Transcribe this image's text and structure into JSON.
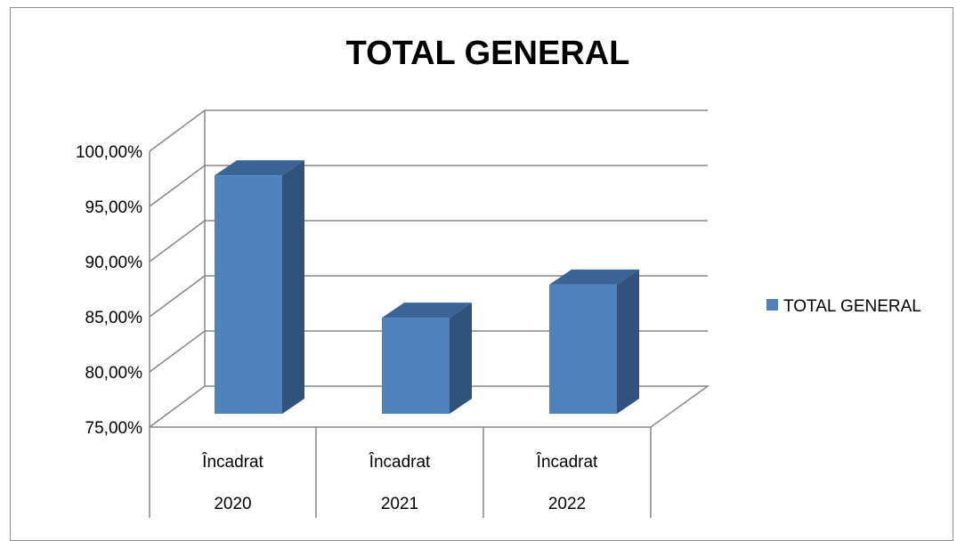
{
  "chart_data": {
    "type": "bar",
    "title": "TOTAL GENERAL",
    "categories": [
      {
        "label": "Încadrat",
        "group": "2020"
      },
      {
        "label": "Încadrat",
        "group": "2021"
      },
      {
        "label": "Încadrat",
        "group": "2022"
      }
    ],
    "series": [
      {
        "name": "TOTAL GENERAL",
        "values": [
          96.6,
          83.7,
          86.7
        ],
        "color": "#4f81bd"
      }
    ],
    "ylim": [
      75,
      100
    ],
    "ytick_step": 5,
    "ytick_labels": [
      "75,00%",
      "80,00%",
      "85,00%",
      "90,00%",
      "95,00%",
      "100,00%"
    ],
    "xlabel": "",
    "ylabel": "",
    "grid": true,
    "three_d": true,
    "legend_position": "right"
  },
  "colors": {
    "bar_front": "#4f81bd",
    "bar_side": "#31527a",
    "bar_top": "#3a6496",
    "grid": "#868686",
    "frame": "#8c8c8c"
  }
}
